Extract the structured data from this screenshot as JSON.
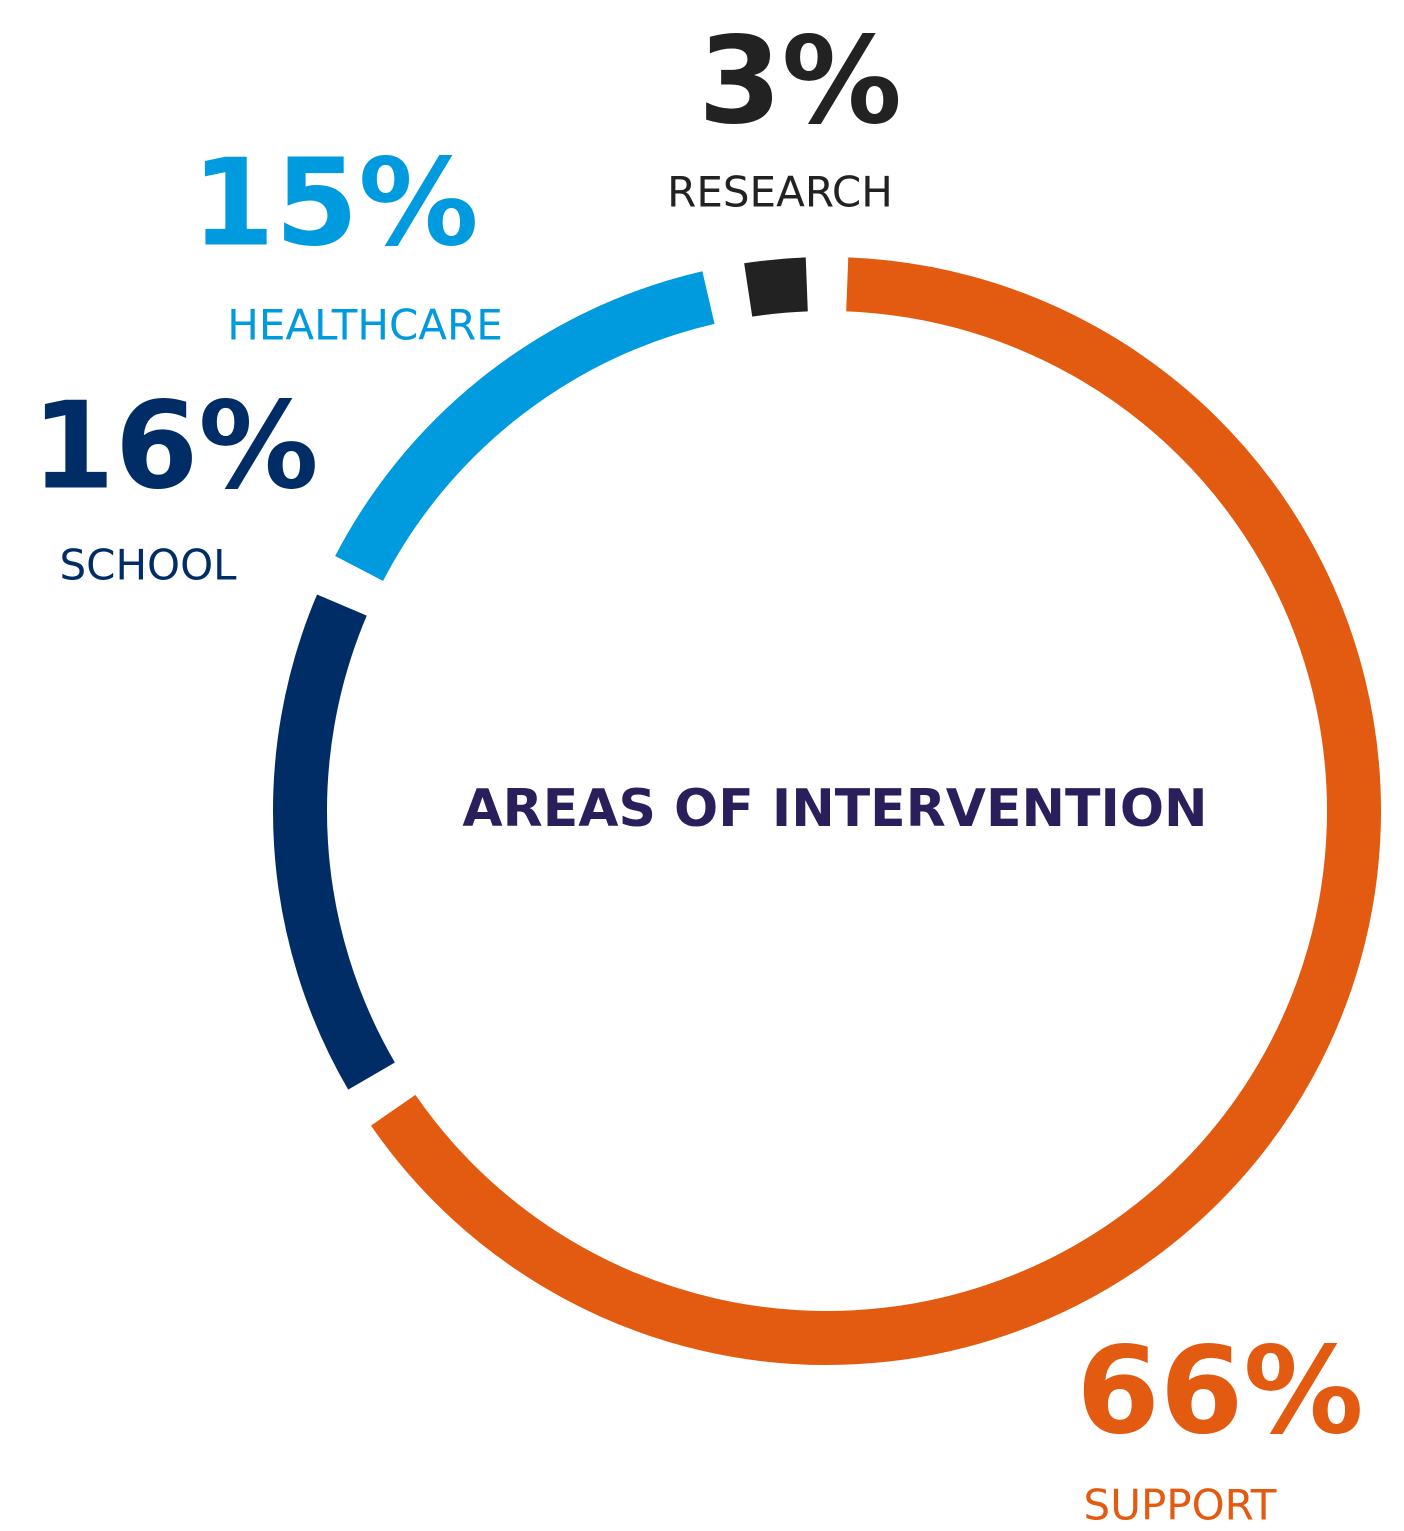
{
  "chart_data": {
    "type": "donut",
    "title": "AREAS OF INTERVENTION",
    "categories": [
      "SUPPORT",
      "SCHOOL",
      "HEALTHCARE",
      "RESEARCH"
    ],
    "values": [
      66,
      16,
      15,
      3
    ],
    "value_labels": [
      "66%",
      "16%",
      "15%",
      "3%"
    ],
    "colors": [
      "#e35b10",
      "#002d66",
      "#009ade",
      "#222222"
    ]
  }
}
